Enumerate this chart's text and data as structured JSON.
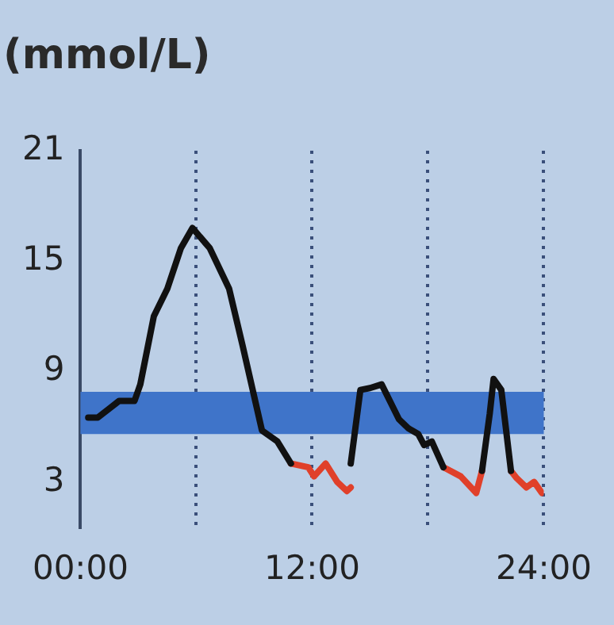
{
  "chart_data": {
    "type": "line",
    "ylabel": "(mmol/L)",
    "xlim": [
      0,
      24
    ],
    "xticks": [
      {
        "value": 0,
        "label": "00:00"
      },
      {
        "value": 6,
        "label": null
      },
      {
        "value": 12,
        "label": "12:00"
      },
      {
        "value": 18,
        "label": null
      },
      {
        "value": 24,
        "label": "24:00"
      }
    ],
    "ylim": [
      0.5,
      21
    ],
    "yticks": [
      3,
      9,
      15,
      21
    ],
    "grid": "x",
    "legend": false,
    "marker": "none",
    "line_style": "solid",
    "bands": [
      {
        "axis": "y",
        "from": 5.6,
        "to": 7.9,
        "color": "#3f74c9"
      }
    ],
    "series": [
      {
        "color": "#111111",
        "x": [
          0.4,
          0.9,
          2.0,
          2.8,
          3.1,
          3.8,
          4.5,
          5.2,
          5.8,
          6.7,
          7.7,
          8.4,
          9.4,
          10.2,
          10.9,
          12.5,
          14.0,
          14.5,
          15.0,
          15.6,
          16.5,
          17.0,
          17.5,
          17.8,
          18.2,
          18.8,
          19.8,
          20.8,
          21.2,
          21.4,
          21.8,
          22.3
        ],
        "values": [
          6.5,
          6.5,
          7.4,
          7.4,
          8.3,
          12.0,
          13.5,
          15.7,
          16.8,
          15.7,
          13.5,
          10.4,
          5.8,
          5.2,
          4.0,
          null,
          4.0,
          8.0,
          8.1,
          8.3,
          6.4,
          5.9,
          5.6,
          5.0,
          5.2,
          3.8,
          null,
          3.6,
          6.7,
          8.6,
          8.0,
          3.6
        ]
      },
      {
        "color": "#e0402a",
        "x": [
          10.9,
          11.8,
          12.1,
          12.7,
          13.3,
          13.8,
          14.0,
          16.0,
          18.8,
          19.7,
          20.5,
          20.8,
          21.5,
          22.3,
          22.6,
          23.1,
          23.5,
          23.9
        ],
        "values": [
          4.0,
          3.8,
          3.3,
          4.0,
          3.0,
          2.5,
          2.7,
          null,
          3.8,
          3.3,
          2.4,
          3.6,
          null,
          3.6,
          3.2,
          2.7,
          3.0,
          2.4
        ]
      }
    ]
  }
}
